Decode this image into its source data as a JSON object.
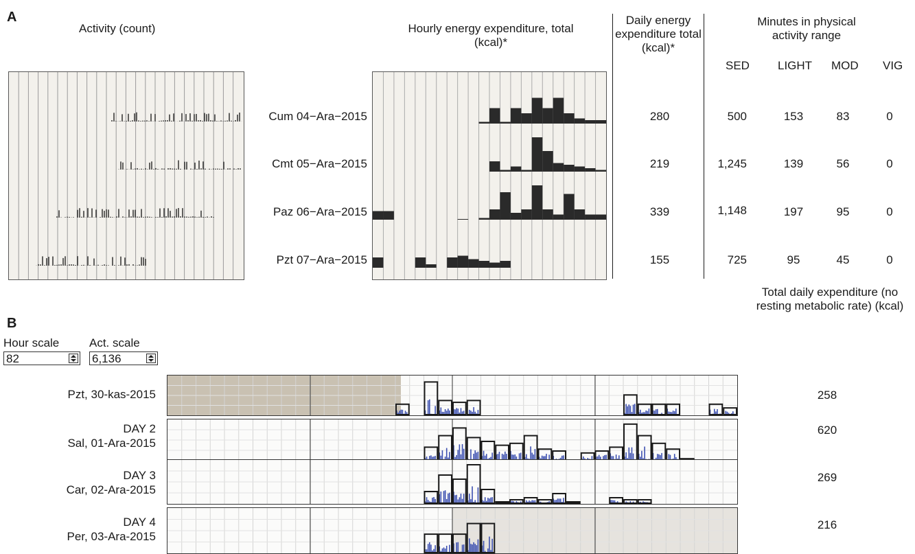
{
  "panel_a": {
    "letter": "A",
    "activity_title": "Activity (count)",
    "hourly_title": "Hourly energy expenditure, total (kcal)*",
    "daily_title": "Daily energy expenditure total (kcal)*",
    "minutes_title": "Minutes in physical activity range",
    "col_headers": [
      "SED",
      "LIGHT",
      "MOD",
      "VIG"
    ],
    "rows": [
      {
        "label": "Cum 04−Ara−2015",
        "daily": "280",
        "sed": "500",
        "light": "153",
        "mod": "83",
        "vig": "0"
      },
      {
        "label": "Cmt 05−Ara−2015",
        "daily": "219",
        "sed": "1,245",
        "light": "139",
        "mod": "56",
        "vig": "0"
      },
      {
        "label": "Paz 06−Ara−2015",
        "daily": "339",
        "sed": "1,148",
        "light": "197",
        "mod": "95",
        "vig": "0"
      },
      {
        "label": "Pzt 07−Ara−2015",
        "daily": "155",
        "sed": "725",
        "light": "95",
        "mod": "45",
        "vig": "0"
      }
    ],
    "hourly_bars": [
      [
        0,
        0,
        0,
        0,
        0,
        0,
        0,
        0,
        0,
        0,
        0.05,
        0.45,
        0.05,
        0.45,
        0.3,
        0.75,
        0.45,
        0.75,
        0.3,
        0.15,
        0.1,
        0.1
      ],
      [
        0,
        0,
        0,
        0,
        0,
        0,
        0,
        0,
        0,
        0,
        0,
        0.3,
        0.05,
        0.15,
        0.05,
        1.0,
        0.6,
        0.25,
        0.2,
        0.15,
        0.1,
        0.05
      ],
      [
        0.25,
        0.25,
        0,
        0,
        0,
        0,
        0,
        0,
        0.02,
        0,
        0.05,
        0.3,
        0.8,
        0.2,
        0.3,
        1.0,
        0.3,
        0.15,
        0.75,
        0.3,
        0.15,
        0.15
      ],
      [
        0.3,
        0,
        0,
        0,
        0.3,
        0.1,
        0,
        0.3,
        0.35,
        0.25,
        0.2,
        0.15,
        0.2,
        0,
        0,
        0,
        0,
        0,
        0,
        0,
        0,
        0
      ]
    ]
  },
  "panel_b": {
    "letter": "B",
    "hour_scale_label": "Hour scale",
    "act_scale_label": "Act. scale",
    "hour_scale_value": "82",
    "act_scale_value": "6,136",
    "total_title": "Total daily expenditure (no resting metabolic rate) (kcal)",
    "days": [
      {
        "day": "",
        "date": "Pzt, 30-kas-2015",
        "total": "258"
      },
      {
        "day": "DAY 2",
        "date": "Sal, 01-Ara-2015",
        "total": "620"
      },
      {
        "day": "DAY 3",
        "date": "Car, 02-Ara-2015",
        "total": "269"
      },
      {
        "day": "DAY 4",
        "date": "Per, 03-Ara-2015",
        "total": "216"
      }
    ],
    "bars": [
      [
        0,
        0,
        0,
        0,
        0,
        0,
        0,
        0,
        0,
        0,
        0,
        0,
        0,
        0,
        0,
        0,
        0.3,
        0,
        0.9,
        0.4,
        0.35,
        0.4,
        0,
        0,
        0,
        0,
        0,
        0,
        0,
        0,
        0,
        0,
        0.55,
        0.3,
        0.3,
        0.3,
        0,
        0,
        0.3,
        0.2
      ],
      [
        0,
        0,
        0,
        0,
        0,
        0,
        0,
        0,
        0,
        0,
        0,
        0,
        0,
        0,
        0,
        0,
        0,
        0,
        0.35,
        0.65,
        0.85,
        0.6,
        0.5,
        0.4,
        0.45,
        0.65,
        0.3,
        0.25,
        0,
        0.2,
        0.25,
        0.35,
        0.95,
        0.65,
        0.45,
        0.3,
        0.05,
        0,
        0,
        0
      ],
      [
        0,
        0,
        0,
        0,
        0,
        0,
        0,
        0,
        0,
        0,
        0,
        0,
        0,
        0,
        0,
        0,
        0,
        0,
        0.3,
        0.7,
        0.6,
        0.95,
        0.35,
        0.05,
        0.1,
        0.15,
        0.1,
        0.25,
        0.05,
        0,
        0,
        0.15,
        0.1,
        0.1,
        0,
        0,
        0,
        0,
        0,
        0
      ],
      [
        0,
        0,
        0,
        0,
        0,
        0,
        0,
        0,
        0,
        0,
        0,
        0,
        0,
        0,
        0,
        0,
        0,
        0,
        0.45,
        0.45,
        0.45,
        0.7,
        0.7,
        0,
        0,
        0,
        0,
        0,
        0,
        0,
        0,
        0,
        0,
        0,
        0,
        0,
        0,
        0,
        0,
        0
      ]
    ]
  },
  "colors": {
    "bar_fill": "#2a2a2a",
    "activity_blue": "#3b4fb0",
    "outline": "#1a1a1a",
    "photo_shade": "#b8ad9a"
  }
}
